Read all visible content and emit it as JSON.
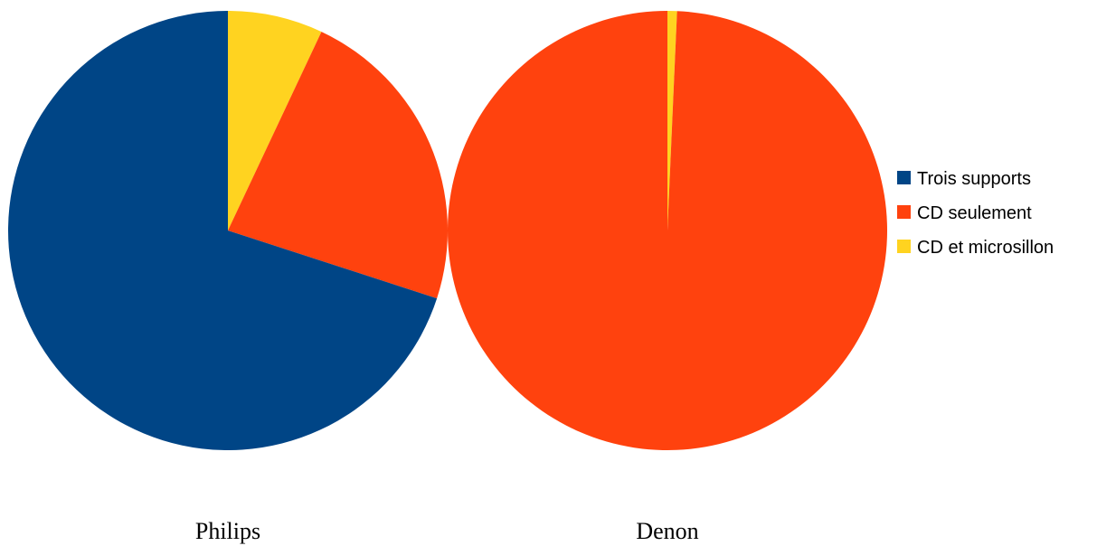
{
  "chart_data": {
    "type": "pie",
    "categories": [
      "Trois supports",
      "CD seulement",
      "CD et microsillon"
    ],
    "colors": [
      "#004586",
      "#ff420e",
      "#ffd320"
    ],
    "series": [
      {
        "name": "Philips",
        "values": [
          70,
          23,
          7
        ]
      },
      {
        "name": "Denon",
        "values": [
          0,
          99.3,
          0.7
        ]
      }
    ],
    "legend_position": "right",
    "legend": [
      "Trois supports",
      "CD seulement",
      "CD et microsillon"
    ]
  }
}
